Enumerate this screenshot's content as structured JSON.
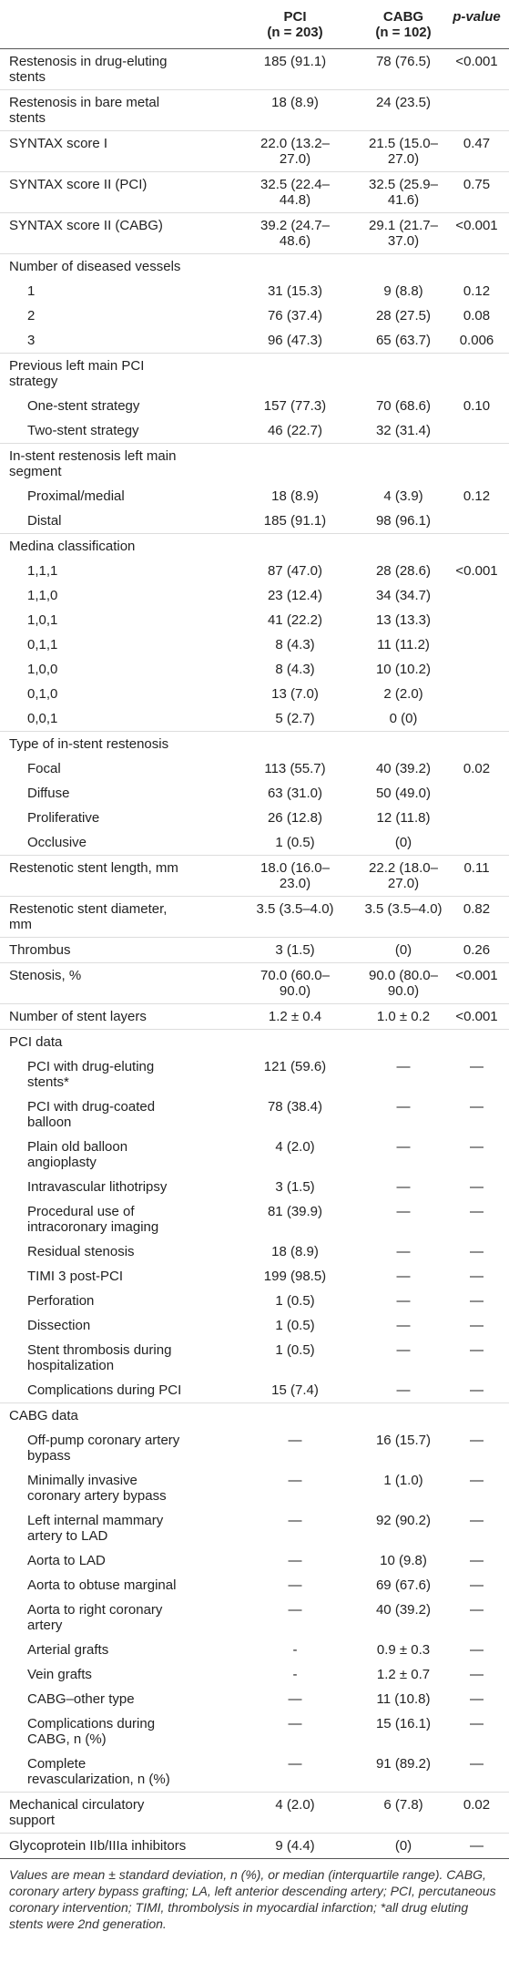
{
  "header": {
    "pci": "PCI",
    "pci_n": "(n = 203)",
    "cabg": "CABG",
    "cabg_n": "(n = 102)",
    "p": "p-value"
  },
  "rows": [
    {
      "label": "Restenosis in drug-eluting stents",
      "pci": "185 (91.1)",
      "cabg": "78 (76.5)",
      "p": "<0.001"
    },
    {
      "label": "Restenosis in bare metal stents",
      "pci": "18 (8.9)",
      "cabg": "24 (23.5)"
    },
    {
      "label": "SYNTAX score I",
      "pci": "22.0 (13.2–27.0)",
      "cabg": "21.5 (15.0–27.0)",
      "p": "0.47"
    },
    {
      "label": "SYNTAX score II (PCI)",
      "pci": "32.5 (22.4–44.8)",
      "cabg": "32.5 (25.9–41.6)",
      "p": "0.75"
    },
    {
      "label": "SYNTAX score II (CABG)",
      "pci": "39.2 (24.7–48.6)",
      "cabg": "29.1 (21.7–37.0)",
      "p": "<0.001"
    },
    {
      "label": "Number of diseased vessels",
      "items": [
        {
          "label": "1",
          "pci": "31 (15.3)",
          "cabg": "9 (8.8)",
          "p": "0.12"
        },
        {
          "label": "2",
          "pci": "76 (37.4)",
          "cabg": "28 (27.5)",
          "p": "0.08"
        },
        {
          "label": "3",
          "pci": "96 (47.3)",
          "cabg": "65 (63.7)",
          "p": "0.006"
        }
      ]
    },
    {
      "label": "Previous left main PCI strategy",
      "items": [
        {
          "label": "One-stent strategy",
          "pci": "157 (77.3)",
          "cabg": "70 (68.6)",
          "p": "0.10"
        },
        {
          "label": "Two-stent strategy",
          "pci": "46 (22.7)",
          "cabg": "32 (31.4)"
        }
      ]
    },
    {
      "label": "In-stent restenosis left main segment",
      "items": [
        {
          "label": "Proximal/medial",
          "pci": "18 (8.9)",
          "cabg": "4 (3.9)",
          "p": "0.12"
        },
        {
          "label": "Distal",
          "pci": "185 (91.1)",
          "cabg": "98 (96.1)"
        }
      ]
    },
    {
      "label": "Medina classification",
      "items": [
        {
          "label": "1,1,1",
          "pci": "87 (47.0)",
          "cabg": "28 (28.6)",
          "p": "<0.001"
        },
        {
          "label": "1,1,0",
          "pci": "23 (12.4)",
          "cabg": "34 (34.7)"
        },
        {
          "label": "1,0,1",
          "pci": "41 (22.2)",
          "cabg": "13 (13.3)"
        },
        {
          "label": "0,1,1",
          "pci": "8 (4.3)",
          "cabg": "11 (11.2)"
        },
        {
          "label": "1,0,0",
          "pci": "8 (4.3)",
          "cabg": "10 (10.2)"
        },
        {
          "label": "0,1,0",
          "pci": "13 (7.0)",
          "cabg": "2 (2.0)"
        },
        {
          "label": "0,0,1",
          "pci": "5 (2.7)",
          "cabg": "0 (0)"
        }
      ]
    },
    {
      "label": "Type of in-stent restenosis",
      "items": [
        {
          "label": "Focal",
          "pci": "113 (55.7)",
          "cabg": "40 (39.2)",
          "p": "0.02"
        },
        {
          "label": "Diffuse",
          "pci": "63 (31.0)",
          "cabg": "50 (49.0)"
        },
        {
          "label": "Proliferative",
          "pci": "26 (12.8)",
          "cabg": "12 (11.8)"
        },
        {
          "label": "Occlusive",
          "pci": "1 (0.5)",
          "cabg": "(0)"
        }
      ]
    },
    {
      "label": "Restenotic stent length, mm",
      "pci": "18.0 (16.0–23.0)",
      "cabg": "22.2 (18.0–27.0)",
      "p": "0.11"
    },
    {
      "label": "Restenotic stent diameter, mm",
      "pci": "3.5 (3.5–4.0)",
      "cabg": "3.5 (3.5–4.0)",
      "p": "0.82"
    },
    {
      "label": "Thrombus",
      "pci": "3 (1.5)",
      "cabg": "(0)",
      "p": "0.26"
    },
    {
      "label": "Stenosis, %",
      "pci": "70.0 (60.0–90.0)",
      "cabg": "90.0 (80.0–90.0)",
      "p": "<0.001"
    },
    {
      "label": "Number of stent layers",
      "pci": "1.2 ± 0.4",
      "cabg": "1.0 ± 0.2",
      "p": "<0.001"
    },
    {
      "label": "PCI data",
      "items": [
        {
          "label": "PCI with drug-eluting stents*",
          "pci": "121 (59.6)",
          "cabg": "—",
          "p": "—"
        },
        {
          "label": "PCI with drug-coated balloon",
          "pci": "78 (38.4)",
          "cabg": "—",
          "p": "—"
        },
        {
          "label": "Plain old balloon angioplasty",
          "pci": "4 (2.0)",
          "cabg": "—",
          "p": "—"
        },
        {
          "label": "Intravascular lithotripsy",
          "pci": "3 (1.5)",
          "cabg": "—",
          "p": "—"
        },
        {
          "label": "Procedural use of intracoronary imaging",
          "pci": "81 (39.9)",
          "cabg": "—",
          "p": "—"
        },
        {
          "label": "Residual stenosis",
          "pci": "18 (8.9)",
          "cabg": "—",
          "p": "—"
        },
        {
          "label": "TIMI 3 post-PCI",
          "pci": "199 (98.5)",
          "cabg": "—",
          "p": "—"
        },
        {
          "label": "Perforation",
          "pci": "1 (0.5)",
          "cabg": "—",
          "p": "—"
        },
        {
          "label": "Dissection",
          "pci": "1 (0.5)",
          "cabg": "—",
          "p": "—"
        },
        {
          "label": "Stent thrombosis during hospitalization",
          "pci": "1 (0.5)",
          "cabg": "—",
          "p": "—"
        },
        {
          "label": "Complications during PCI",
          "pci": "15 (7.4)",
          "cabg": "—",
          "p": "—"
        }
      ]
    },
    {
      "label": "CABG data",
      "items": [
        {
          "label": "Off-pump coronary artery bypass",
          "pci": "—",
          "cabg": "16 (15.7)",
          "p": "—"
        },
        {
          "label": "Minimally invasive coronary artery bypass",
          "pci": "—",
          "cabg": "1 (1.0)",
          "p": "—"
        },
        {
          "label": "Left internal mammary artery to LAD",
          "pci": "—",
          "cabg": "92 (90.2)",
          "p": "—"
        },
        {
          "label": "Aorta to LAD",
          "pci": "—",
          "cabg": "10 (9.8)",
          "p": "—"
        },
        {
          "label": "Aorta to obtuse marginal",
          "pci": "—",
          "cabg": "69 (67.6)",
          "p": "—"
        },
        {
          "label": "Aorta to right coronary artery",
          "pci": "—",
          "cabg": "40 (39.2)",
          "p": "—"
        },
        {
          "label": "Arterial grafts",
          "pci": "-",
          "cabg": "0.9 ± 0.3",
          "p": "—"
        },
        {
          "label": "Vein grafts",
          "pci": "-",
          "cabg": "1.2 ± 0.7",
          "p": "—"
        },
        {
          "label": "CABG–other type",
          "pci": "—",
          "cabg": "11 (10.8)",
          "p": "—"
        },
        {
          "label": "Complications during CABG, n (%)",
          "pci": "—",
          "cabg": "15 (16.1)",
          "p": "—"
        },
        {
          "label": "Complete revascularization, n (%)",
          "pci": "—",
          "cabg": "91 (89.2)",
          "p": "—"
        }
      ]
    },
    {
      "label": "Mechanical circulatory support",
      "pci": "4 (2.0)",
      "cabg": "6 (7.8)",
      "p": "0.02"
    },
    {
      "label": "Glycoprotein IIb/IIIa inhibitors",
      "pci": "9 (4.4)",
      "cabg": "(0)",
      "p": "—"
    }
  ],
  "footnote": "Values are mean ± standard deviation, n (%), or median (interquartile range). CABG, coronary artery bypass grafting; LA, left anterior descending artery; PCI, percutaneous coronary intervention; TIMI, thrombolysis in myocardial infarction; *all drug eluting stents were 2nd generation."
}
